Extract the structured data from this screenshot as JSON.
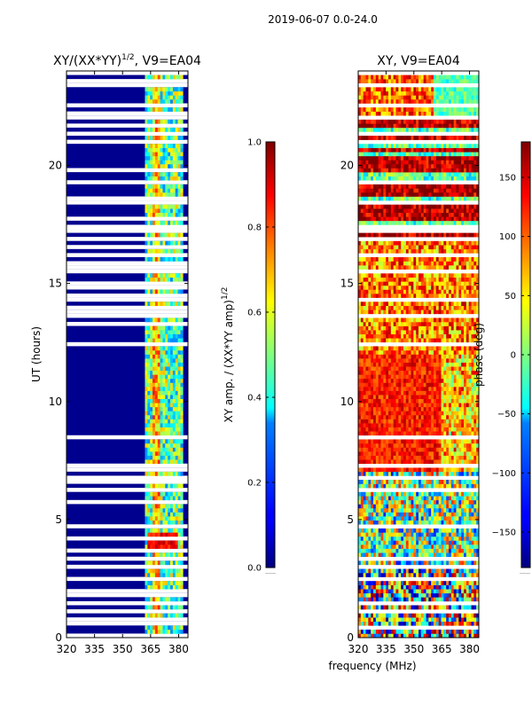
{
  "suptitle": "2019-06-07 0.0-24.0",
  "shared_xlabel": "frequency (MHz)",
  "chart_data": [
    {
      "type": "heatmap",
      "title_main": "XY/(XX*YY)",
      "title_sup": "1/2",
      "title_rest": ", V9=EA04",
      "xlabel": "",
      "ylabel": "UT (hours)",
      "xlim": [
        320,
        385
      ],
      "ylim": [
        0,
        24
      ],
      "xticks": [
        320,
        335,
        350,
        365,
        380
      ],
      "yticks": [
        0,
        5,
        10,
        15,
        20
      ],
      "colorbar": {
        "label_main": "XY amp. / (XX*YY amp)",
        "label_sup": "1/2",
        "range": [
          0.0,
          1.0
        ],
        "ticks": [
          "0.0",
          "0.2",
          "0.4",
          "0.6",
          "0.8",
          "1.0"
        ],
        "tick_values": [
          0.0,
          0.2,
          0.4,
          0.6,
          0.8,
          1.0
        ],
        "colormap": "jet"
      },
      "flagged_hours": [
        0.15,
        0.55,
        0.85,
        1.15,
        1.45,
        1.75,
        2.05,
        2.55,
        3.05,
        3.35,
        3.65,
        4.25,
        4.65,
        5.75,
        6.25,
        6.55,
        6.85,
        7.15,
        7.35,
        8.55,
        12.35,
        12.45,
        13.25,
        13.55,
        13.85,
        14.05,
        14.25,
        14.45,
        14.75,
        15.05,
        15.45,
        15.65,
        15.85,
        16.25,
        16.55,
        16.85,
        17.15,
        17.45,
        17.75,
        18.35,
        18.65,
        19.25,
        19.75,
        21.05,
        21.35,
        21.65,
        21.95,
        22.25,
        22.55,
        23.45,
        23.65,
        23.85
      ],
      "hot_region": {
        "x": [
          364,
          380
        ],
        "y": [
          3.8,
          4.5
        ],
        "value": 0.95
      }
    },
    {
      "type": "heatmap",
      "title_main": "XY, V9=EA04",
      "xlabel": "",
      "ylabel": "",
      "xlim": [
        320,
        385
      ],
      "ylim": [
        0,
        24
      ],
      "xticks": [
        320,
        335,
        350,
        365,
        380
      ],
      "yticks": [
        0,
        5,
        10,
        15,
        20
      ],
      "colorbar": {
        "label_main": "phase (deg)",
        "range": [
          -180,
          180
        ],
        "ticks": [
          "−150",
          "−100",
          "−50",
          "0",
          "50",
          "100",
          "150"
        ],
        "tick_values": [
          -150,
          -100,
          -50,
          0,
          50,
          100,
          150
        ],
        "colormap": "jet"
      },
      "flagged_hours": [
        0.35,
        1.05,
        1.45,
        2.55,
        3.05,
        3.35,
        4.65,
        6.25,
        6.85,
        7.35,
        8.55,
        12.35,
        13.55,
        14.25,
        15.45,
        16.25,
        16.85,
        17.15,
        17.45,
        18.35,
        19.25,
        21.05,
        21.35,
        21.95,
        22.55,
        23.45,
        23.85
      ]
    }
  ]
}
